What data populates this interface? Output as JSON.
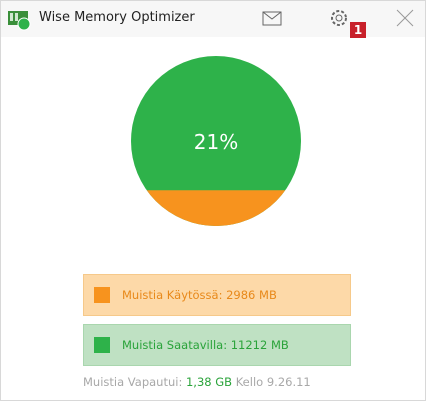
{
  "window": {
    "title": "Wise Memory Optimizer",
    "badge": "1"
  },
  "gauge": {
    "value": 21,
    "label": "21%",
    "used_color": "#f7931e",
    "free_color": "#2eb24a"
  },
  "used": {
    "label": "Muistia Käytössä: 2986 MB"
  },
  "available": {
    "label": "Muistia Saatavilla: 11212 MB"
  },
  "footer": {
    "freed_label": "Muistia Vapautui:",
    "freed_value": "1,38 GB",
    "clock_label": "Kello",
    "clock_value": "9.26.11"
  }
}
